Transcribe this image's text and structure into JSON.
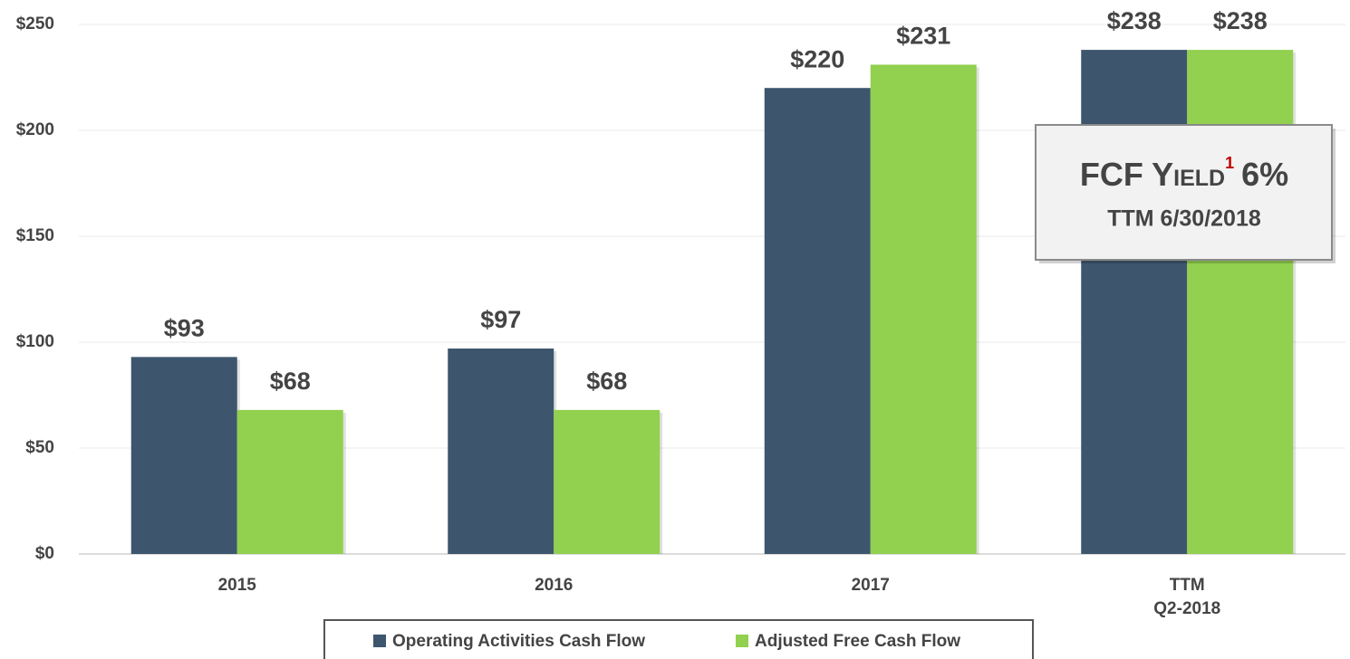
{
  "chart_data": {
    "type": "bar",
    "categories": [
      "2015",
      "2016",
      "2017",
      "TTM\nQ2-2018"
    ],
    "series": [
      {
        "name": "Operating Activities Cash Flow",
        "color": "#3d566e",
        "values": [
          93,
          97,
          220,
          238
        ],
        "value_labels": [
          "$93",
          "$97",
          "$220",
          "$238"
        ]
      },
      {
        "name": "Adjusted Free Cash Flow",
        "color": "#92d050",
        "values": [
          68,
          68,
          231,
          238
        ],
        "value_labels": [
          "$68",
          "$68",
          "$231",
          "$238"
        ]
      }
    ],
    "ylim": [
      0,
      250
    ],
    "yticks": [
      {
        "value": 0,
        "label": "$0"
      },
      {
        "value": 50,
        "label": "$50"
      },
      {
        "value": 100,
        "label": "$100"
      },
      {
        "value": 150,
        "label": "$150"
      },
      {
        "value": 200,
        "label": "$200"
      },
      {
        "value": 250,
        "label": "$250"
      }
    ],
    "grid": true,
    "legend": "bottom",
    "annotation": {
      "title": "FCF Yield",
      "footnote": "1",
      "value": "6%",
      "subtitle": "TTM 6/30/2018"
    }
  }
}
